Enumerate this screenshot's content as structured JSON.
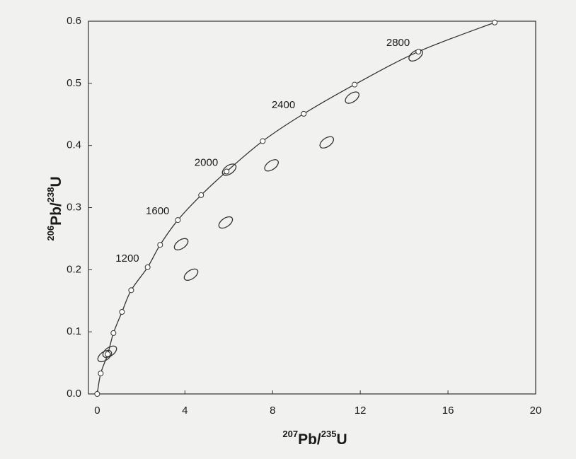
{
  "chart_data": {
    "type": "scatter",
    "xlabel": [
      "207",
      "Pb/",
      "235",
      "U"
    ],
    "ylabel": [
      "206",
      "Pb/",
      "238",
      "U"
    ],
    "xlim": [
      -0.4,
      20
    ],
    "ylim": [
      0,
      0.6
    ],
    "xticks": [
      0,
      4,
      8,
      12,
      16,
      20
    ],
    "yticks": [
      {
        "value": 0,
        "label": "0.0"
      },
      0.1,
      0.2,
      0.3,
      0.4,
      0.5,
      0.6
    ],
    "color": "#333333",
    "series": [
      {
        "x": [
          0,
          0.16,
          0.48,
          0.74,
          1.13,
          1.55,
          2.3,
          2.87,
          3.68,
          4.74,
          5.9,
          7.55,
          9.42,
          11.74,
          14.65,
          18.13
        ],
        "values": [
          0,
          0.033,
          0.064,
          0.098,
          0.132,
          0.167,
          0.204,
          0.24,
          0.28,
          0.32,
          0.358,
          0.407,
          0.451,
          0.498,
          0.551,
          0.598
        ],
        "labels": [
          null,
          null,
          null,
          null,
          null,
          null,
          1200,
          null,
          1600,
          null,
          2000,
          null,
          2400,
          null,
          2800,
          null
        ]
      },
      {
        "x": [
          0.34,
          0.57,
          3.83,
          4.28,
          5.86,
          6.02,
          7.95,
          10.47,
          11.63,
          14.53
        ],
        "values": [
          0.061,
          0.068,
          0.241,
          0.192,
          0.276,
          0.361,
          0.368,
          0.405,
          0.477,
          0.545
        ]
      }
    ]
  }
}
